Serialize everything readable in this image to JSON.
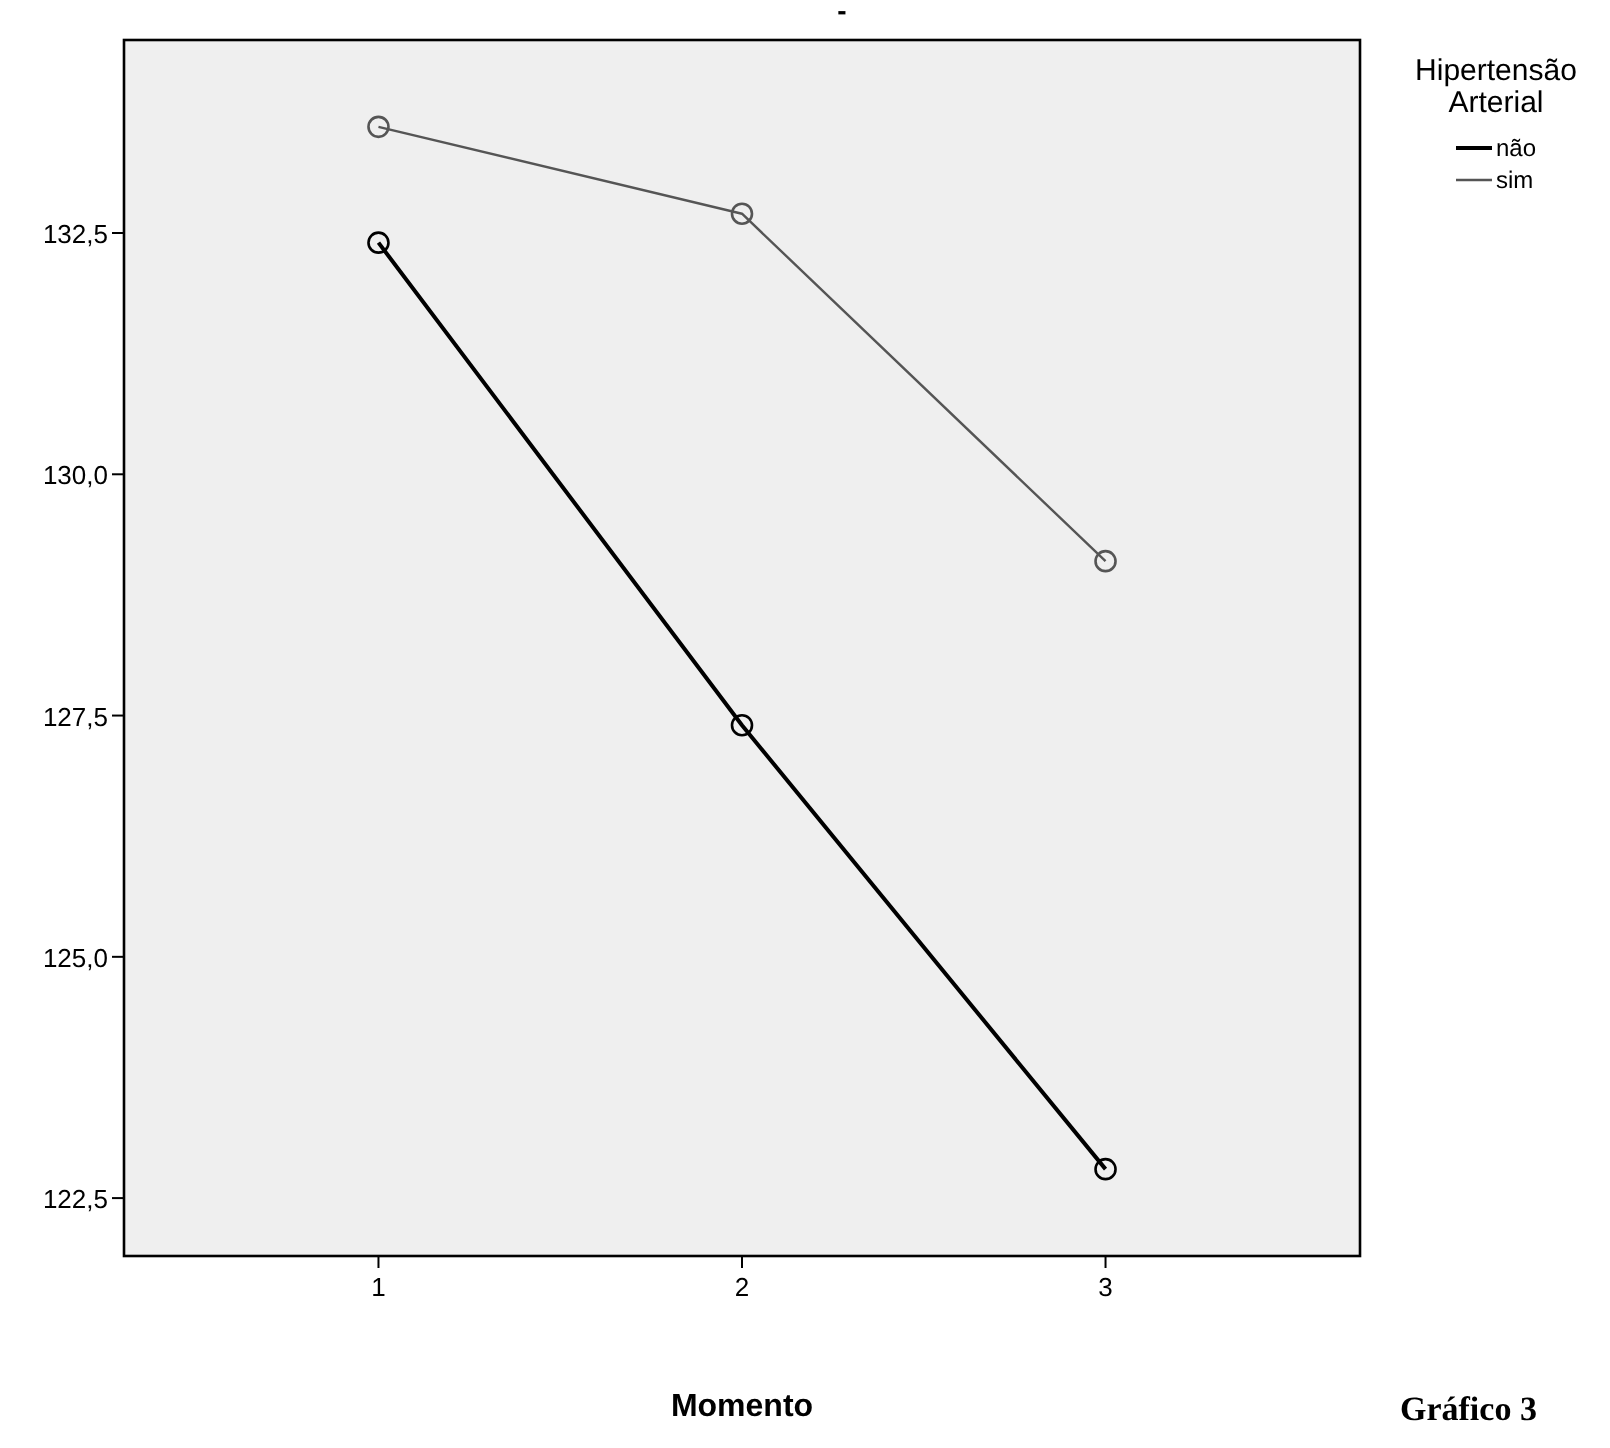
{
  "chart_data": {
    "type": "line",
    "title": "-",
    "xlabel": "Momento",
    "legend_title": "Hipertensão Arterial",
    "x": [
      1,
      2,
      3
    ],
    "series": [
      {
        "name": "não",
        "color": "#000000",
        "values": [
          132.4,
          127.4,
          122.8
        ]
      },
      {
        "name": "sim",
        "color": "#555555",
        "values": [
          133.6,
          132.7,
          129.1
        ]
      }
    ],
    "xlim": [
      0.3,
      3.7
    ],
    "xticks": [
      1,
      2,
      3
    ],
    "ylim": [
      121.9,
      134.5
    ],
    "yticks": [
      {
        "value": 122.5,
        "label": "122,5"
      },
      {
        "value": 125,
        "label": "125,0"
      },
      {
        "value": 127.5,
        "label": "127,5"
      },
      {
        "value": 130,
        "label": "130,0"
      },
      {
        "value": 132.5,
        "label": "132,5"
      }
    ],
    "grid": false,
    "legend": "right",
    "marker": "circle",
    "line_style": "solid",
    "annotations": [
      "Gráfico 3"
    ]
  }
}
